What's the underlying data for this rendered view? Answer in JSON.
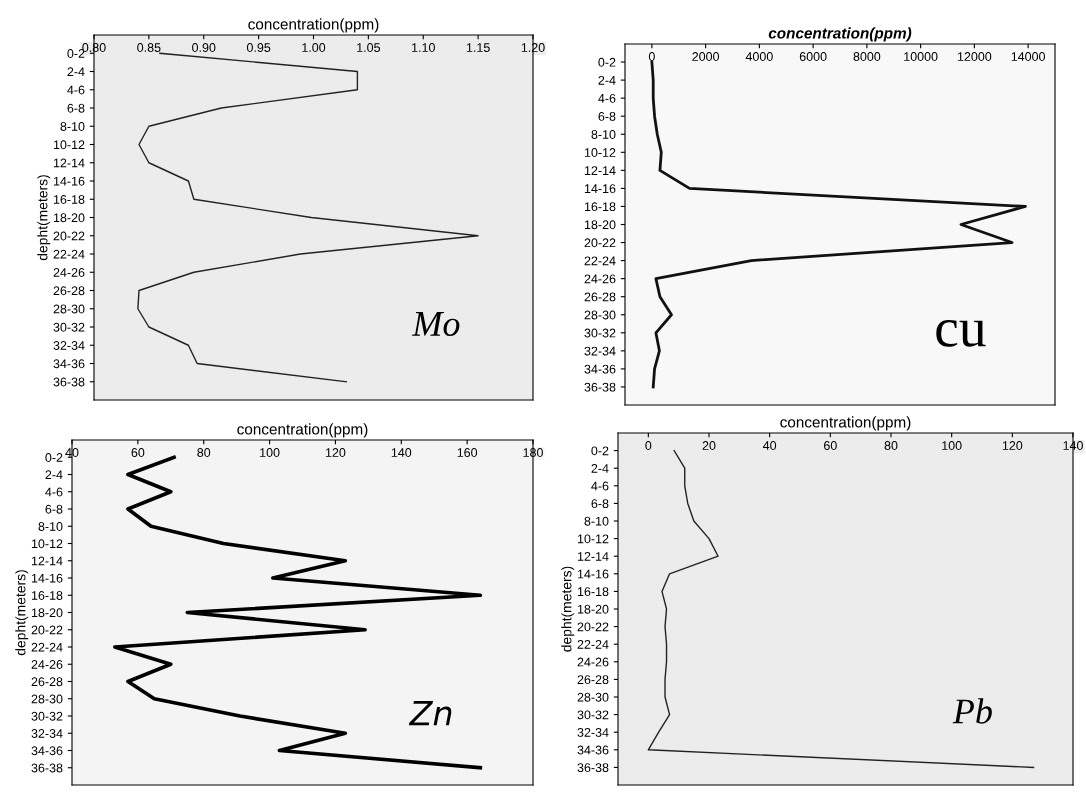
{
  "chart_data": [
    {
      "type": "line",
      "orientation": "horizontal",
      "xlabel": "concentration(ppm)",
      "ylabel": "depht(meters)",
      "categories": [
        "0-2",
        "2-4",
        "4-6",
        "6-8",
        "8-10",
        "10-12",
        "12-14",
        "14-16",
        "16-18",
        "18-20",
        "20-22",
        "22-24",
        "24-26",
        "26-28",
        "28-30",
        "30-32",
        "32-34",
        "34-36",
        "36-38"
      ],
      "series": [
        {
          "color": "#222222",
          "values": [
            0.86,
            1.04,
            1.04,
            0.916,
            0.85,
            0.841,
            0.85,
            0.886,
            0.891,
            0.998,
            1.15,
            0.988,
            0.891,
            0.841,
            0.84,
            0.85,
            0.886,
            0.894,
            1.03
          ]
        }
      ],
      "xlim": [
        0.8,
        1.2
      ],
      "xticks": [
        {
          "value": 0.8,
          "label": "0.80"
        },
        {
          "value": 0.85,
          "label": "0.85"
        },
        {
          "value": 0.9,
          "label": "0.90"
        },
        {
          "value": 0.95,
          "label": "0.95"
        },
        {
          "value": 1.0,
          "label": "1.00"
        },
        {
          "value": 1.05,
          "label": "1.05"
        },
        {
          "value": 1.1,
          "label": "1.10"
        },
        {
          "value": 1.15,
          "label": "1.15"
        },
        {
          "value": 1.2,
          "label": "1.20"
        }
      ],
      "annotations": [
        "Mo"
      ]
    },
    {
      "type": "line",
      "orientation": "horizontal",
      "xlabel": "concentration(ppm)",
      "categories": [
        "0-2",
        "2-4",
        "4-6",
        "6-8",
        "8-10",
        "10-12",
        "12-14",
        "14-16",
        "16-18",
        "18-20",
        "20-22",
        "22-24",
        "24-26",
        "26-28",
        "28-30",
        "30-32",
        "32-34",
        "34-36",
        "36-38"
      ],
      "series": [
        {
          "color": "#111111",
          "values": [
            0,
            50,
            50,
            100,
            200,
            350,
            300,
            1400,
            13900,
            11500,
            13400,
            3700,
            150,
            300,
            730,
            150,
            280,
            100,
            50
          ]
        }
      ],
      "xlim": [
        -1000,
        15000
      ],
      "xticks": [
        0,
        2000,
        4000,
        6000,
        8000,
        10000,
        12000,
        14000
      ],
      "annotations": [
        "cu"
      ]
    },
    {
      "type": "line",
      "orientation": "horizontal",
      "xlabel": "concentration(ppm)",
      "ylabel": "depht(meters)",
      "categories": [
        "0-2",
        "2-4",
        "4-6",
        "6-8",
        "8-10",
        "10-12",
        "12-14",
        "14-16",
        "16-18",
        "18-20",
        "20-22",
        "22-24",
        "24-26",
        "26-28",
        "28-30",
        "30-32",
        "32-34",
        "34-36",
        "36-38"
      ],
      "series": [
        {
          "color": "#000000",
          "values": [
            71,
            57,
            70,
            57,
            64,
            86,
            123,
            101,
            164,
            75,
            129,
            53,
            70,
            57,
            65,
            91,
            123,
            103,
            164
          ]
        }
      ],
      "xlim": [
        40,
        180
      ],
      "xticks": [
        40,
        60,
        80,
        100,
        120,
        140,
        160,
        180
      ],
      "annotations": [
        "Zn"
      ]
    },
    {
      "type": "line",
      "orientation": "horizontal",
      "xlabel": "concentration(ppm)",
      "ylabel": "depht(meters)",
      "categories": [
        "0-2",
        "2-4",
        "4-6",
        "6-8",
        "8-10",
        "10-12",
        "12-14",
        "14-16",
        "16-18",
        "18-20",
        "20-22",
        "22-24",
        "24-26",
        "26-28",
        "28-30",
        "30-32",
        "32-34",
        "34-36",
        "36-38"
      ],
      "series": [
        {
          "color": "#222222",
          "values": [
            8.5,
            12,
            12,
            13,
            15,
            20,
            23,
            7,
            4.5,
            6,
            5.5,
            6,
            6,
            5.5,
            5.5,
            7,
            3.4,
            0,
            127
          ]
        }
      ],
      "xlim": [
        -10,
        140
      ],
      "xticks": [
        0,
        20,
        40,
        60,
        80,
        100,
        120,
        140
      ],
      "annotations": [
        "Pb"
      ]
    }
  ]
}
